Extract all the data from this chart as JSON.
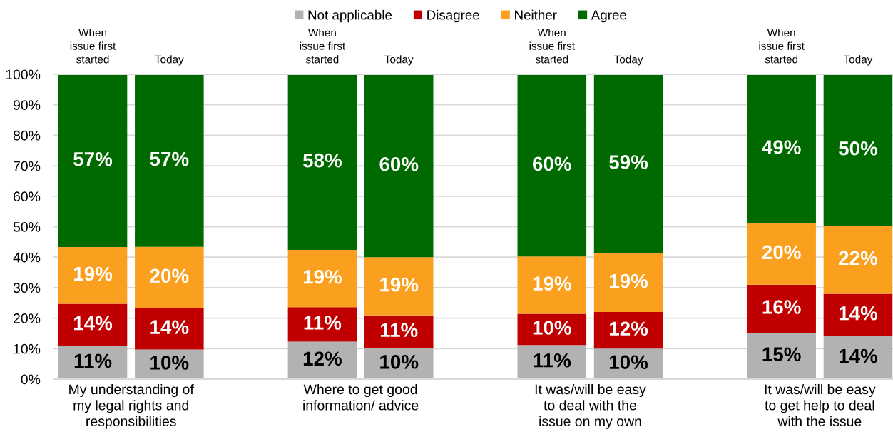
{
  "chart_data": {
    "type": "bar",
    "stacked": true,
    "categories": [
      "When\nissue first\nstarted",
      "Today",
      null,
      "When\nissue first\nstarted",
      "Today",
      null,
      "When\nissue first\nstarted",
      "Today",
      null,
      "When\nissue first\nstarted",
      "Today"
    ],
    "series": [
      {
        "name": "Not applicable",
        "color": "#b2b2b2",
        "values": [
          10.9,
          9.7,
          null,
          12.3,
          10.2,
          null,
          11.2,
          10.0,
          null,
          15.2,
          14.1
        ],
        "value_labels": [
          "11%",
          "10%",
          null,
          "12%",
          "10%",
          null,
          "11%",
          "10%",
          null,
          "15%",
          "14%"
        ]
      },
      {
        "name": "Disagree",
        "color": "#c00000",
        "values": [
          13.8,
          13.6,
          null,
          11.3,
          10.7,
          null,
          10.2,
          12.0,
          null,
          15.8,
          13.9
        ],
        "value_labels": [
          "14%",
          "14%",
          null,
          "11%",
          "11%",
          null,
          "10%",
          "12%",
          null,
          "16%",
          "14%"
        ]
      },
      {
        "name": "Neither",
        "color": "#fba01e",
        "values": [
          18.6,
          20.1,
          null,
          18.8,
          19.1,
          null,
          18.8,
          19.3,
          null,
          20.1,
          22.3
        ],
        "value_labels": [
          "19%",
          "20%",
          null,
          "19%",
          "19%",
          null,
          "19%",
          "19%",
          null,
          "20%",
          "22%"
        ]
      },
      {
        "name": "Agree",
        "color": "#006a00",
        "values": [
          56.7,
          56.6,
          null,
          57.6,
          60.0,
          null,
          59.8,
          58.7,
          null,
          48.9,
          49.7
        ],
        "value_labels": [
          "57%",
          "57%",
          null,
          "58%",
          "60%",
          null,
          "60%",
          "59%",
          null,
          "49%",
          "50%"
        ]
      }
    ],
    "ylim": [
      0,
      100
    ],
    "yticks": [
      {
        "value": 0,
        "label": "0%"
      },
      {
        "value": 10,
        "label": "10%"
      },
      {
        "value": 20,
        "label": "20%"
      },
      {
        "value": 30,
        "label": "30%"
      },
      {
        "value": 40,
        "label": "40%"
      },
      {
        "value": 50,
        "label": "50%"
      },
      {
        "value": 60,
        "label": "60%"
      },
      {
        "value": 70,
        "label": "70%"
      },
      {
        "value": 80,
        "label": "80%"
      },
      {
        "value": 90,
        "label": "90%"
      },
      {
        "value": 100,
        "label": "100%"
      }
    ],
    "annotations": [
      "My understanding of\nmy legal rights and\nresponsibilities",
      "Where to get good\ninformation/ advice",
      "It was/will be easy\nto deal with the\nissue on my own",
      "It was/will be easy\nto get help to deal\nwith the issue"
    ],
    "grid": "y",
    "legend": "top"
  }
}
